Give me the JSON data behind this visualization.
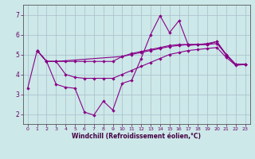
{
  "xlabel": "Windchill (Refroidissement éolien,°C)",
  "bg_color": "#cce8e8",
  "grid_color": "#aabccc",
  "line_color": "#880088",
  "xlim": [
    -0.5,
    23.5
  ],
  "ylim": [
    1.5,
    7.5
  ],
  "yticks": [
    2,
    3,
    4,
    5,
    6,
    7
  ],
  "xticks": [
    0,
    1,
    2,
    3,
    4,
    5,
    6,
    7,
    8,
    9,
    10,
    11,
    12,
    13,
    14,
    15,
    16,
    17,
    18,
    19,
    20,
    21,
    22,
    23
  ],
  "series": {
    "line1_x": [
      0,
      1,
      2,
      3,
      4,
      5,
      6,
      7,
      8,
      9,
      10,
      11,
      12,
      13,
      14,
      15,
      16,
      17,
      18,
      19,
      20,
      21,
      22,
      23
    ],
    "line1_y": [
      3.3,
      5.2,
      4.65,
      3.5,
      3.35,
      3.3,
      2.1,
      1.95,
      2.65,
      2.2,
      3.55,
      3.7,
      4.8,
      6.0,
      6.95,
      6.1,
      6.7,
      5.45,
      5.5,
      5.5,
      5.65,
      4.95,
      4.5,
      4.5
    ],
    "line2_x": [
      1,
      2,
      3,
      10,
      11,
      12,
      13,
      14,
      15,
      16,
      17,
      18,
      19,
      20,
      21,
      22,
      23
    ],
    "line2_y": [
      5.2,
      4.65,
      4.65,
      4.9,
      5.05,
      5.15,
      5.25,
      5.35,
      5.45,
      5.5,
      5.5,
      5.5,
      5.55,
      5.65,
      5.0,
      4.5,
      4.5
    ],
    "line3_x": [
      1,
      2,
      3,
      4,
      5,
      6,
      7,
      8,
      9,
      10,
      11,
      12,
      13,
      14,
      15,
      16,
      17,
      18,
      19,
      20,
      21,
      22,
      23
    ],
    "line3_y": [
      5.2,
      4.65,
      4.65,
      4.65,
      4.65,
      4.65,
      4.65,
      4.65,
      4.65,
      4.9,
      5.0,
      5.1,
      5.2,
      5.3,
      5.4,
      5.45,
      5.5,
      5.5,
      5.5,
      5.55,
      5.0,
      4.5,
      4.5
    ],
    "line4_x": [
      1,
      2,
      3,
      4,
      5,
      6,
      7,
      8,
      9,
      10,
      11,
      12,
      13,
      14,
      15,
      16,
      17,
      18,
      19,
      20,
      21,
      22,
      23
    ],
    "line4_y": [
      5.2,
      4.65,
      4.65,
      4.0,
      3.85,
      3.8,
      3.8,
      3.8,
      3.8,
      4.0,
      4.2,
      4.4,
      4.6,
      4.8,
      5.0,
      5.1,
      5.2,
      5.25,
      5.3,
      5.35,
      4.85,
      4.45,
      4.5
    ]
  }
}
